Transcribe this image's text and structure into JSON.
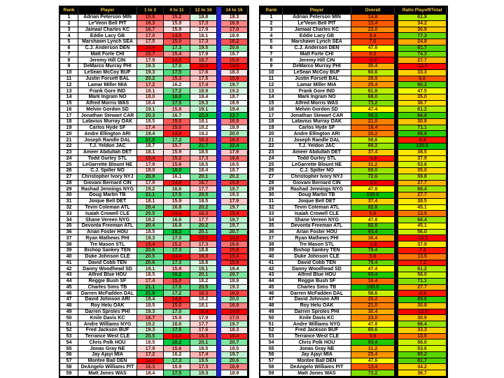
{
  "page": {
    "background": "#FFFFFF"
  },
  "styles": {
    "header_bg": "#000000",
    "header_text": "#FFD24D",
    "value_text": "#4D1000",
    "label_text": "#000000",
    "left_separator_color": "#2222DD",
    "right_separator_color": "#000000"
  },
  "chart_data": [
    {
      "type": "table",
      "name": "weekly-splits-table",
      "columns": [
        "Rank",
        "Player",
        "1 to 3",
        "4 to 11",
        "12 to 16",
        "14 to 16"
      ],
      "color_scale": {
        "low": "#FF0000",
        "mid": "#FFFFFF",
        "high": "#00CC44",
        "mid_mode": "median"
      },
      "separator": {
        "after_column": 4,
        "color": "#2222DD"
      },
      "rows": [
        [
          1,
          "Adrian Peterson MIN",
          15.8,
          15.2,
          18.8,
          18.3
        ],
        [
          2,
          "Le'Veon Bell PIT",
          16.3,
          15.9,
          17.3,
          16.9
        ],
        [
          3,
          "Jamaal Charles KC",
          16.7,
          15.9,
          17.9,
          17.0
        ],
        [
          4,
          "Eddie Lacy GB",
          17.0,
          14.8,
          18.1,
          18.9
        ],
        [
          5,
          "Marshawn Lynch SEA",
          17.5,
          15.0,
          17.3,
          16.2
        ],
        [
          6,
          "C.J. Anderson DEN",
          14.4,
          17.3,
          19.5,
          20.6
        ],
        [
          7,
          "Matt Forte CHI",
          15.7,
          15.4,
          17.9,
          18.7
        ],
        [
          8,
          "Jeremy Hill CIN",
          17.9,
          14.6,
          16.7,
          15.9
        ],
        [
          9,
          "DeMarco Murray PHI",
          19.3,
          17.0,
          15.4,
          14.9
        ],
        [
          10,
          "LeSean McCoy BUF",
          19.3,
          17.5,
          17.6,
          18.3
        ],
        [
          11,
          "Justin Forsett BAL",
          20.2,
          15.3,
          17.5,
          15.9
        ],
        [
          12,
          "Lamar Miller MIA",
          17.2,
          16.2,
          17.4,
          19.7
        ],
        [
          13,
          "Frank Gore IND",
          18.1,
          17.2,
          18.9,
          19.2
        ],
        [
          14,
          "Mark Ingram NO",
          18.0,
          18.0,
          18.4,
          18.7
        ],
        [
          15,
          "Alfred Morris WAS",
          18.4,
          17.5,
          19.3,
          18.9
        ],
        [
          16,
          "Melvin Gordon SD",
          19.1,
          15.8,
          19.1,
          19.4
        ],
        [
          17,
          "Jonathan Stewart CAR",
          20.3,
          16.7,
          22.0,
          22.7
        ],
        [
          18,
          "Latavius Murray OAK",
          18.5,
          15.0,
          18.1,
          16.9
        ],
        [
          19,
          "Carlos Hyde SF",
          17.4,
          15.0,
          18.2,
          18.9
        ],
        [
          20,
          "Andre Ellington ARI",
          19.4,
          14.6,
          18.2,
          20.0
        ],
        [
          21,
          "Joseph Randle DAL",
          21.9,
          17.2,
          16.3,
          16.0
        ],
        [
          22,
          "T.J. Yeldon JAC",
          18.7,
          15.7,
          21.7,
          22.4
        ],
        [
          23,
          "Ameer Abdullah DET",
          18.1,
          15.9,
          18.5,
          17.9
        ],
        [
          24,
          "Todd Gurley STL",
          15.4,
          15.2,
          17.3,
          16.6
        ],
        [
          25,
          "LeGarrette Blount NE",
          17.9,
          15.6,
          18.5,
          18.5
        ],
        [
          26,
          "C.J. Spiller NO",
          18.0,
          18.0,
          18.4,
          18.7
        ],
        [
          27,
          "Christopher Ivory NYJ",
          20.8,
          16.1,
          20.1,
          20.2
        ],
        [
          28,
          "Giovani Bernard CIN",
          17.9,
          14.6,
          16.7,
          15.9
        ],
        [
          29,
          "Rashad Jennings NYG",
          19.2,
          16.6,
          17.7,
          19.7
        ],
        [
          30,
          "Doug Martin TB",
          21.1,
          17.5,
          20.5,
          19.3
        ],
        [
          31,
          "Joique Bell DET",
          18.1,
          15.9,
          18.5,
          17.9
        ],
        [
          32,
          "Tevin Coleman ATL",
          20.4,
          16.8,
          20.2,
          19.7
        ],
        [
          33,
          "Isaiah Crowell CLE",
          20.5,
          14.4,
          16.3,
          15.4
        ],
        [
          34,
          "Shane Vereen NYG",
          19.2,
          16.6,
          17.7,
          19.7
        ],
        [
          35,
          "Devonta Freeman ATL",
          20.4,
          16.8,
          20.2,
          19.7
        ],
        [
          36,
          "Arian Foster HOU",
          18.5,
          18.2,
          20.1,
          20.7
        ],
        [
          37,
          "Ryan Mathews PHI",
          19.3,
          17.0,
          15.4,
          14.9
        ],
        [
          38,
          "Tre Mason STL",
          15.4,
          15.2,
          17.3,
          16.6
        ],
        [
          39,
          "Bishop Sankey TEN",
          20.6,
          17.3,
          18.8,
          15.6
        ],
        [
          40,
          "Duke Johnson CLE",
          20.5,
          14.4,
          16.3,
          15.4
        ],
        [
          41,
          "David Cobb TEN",
          20.6,
          17.3,
          18.8,
          15.6
        ],
        [
          42,
          "Danny Woodhead SD",
          19.1,
          15.8,
          19.1,
          19.4
        ],
        [
          43,
          "Alfred Blue HOU",
          18.5,
          18.2,
          20.1,
          20.7
        ],
        [
          44,
          "Reggie Bush SF",
          17.4,
          15.0,
          18.2,
          18.9
        ],
        [
          45,
          "Charles Sims TB",
          21.1,
          17.5,
          20.5,
          19.3
        ],
        [
          46,
          "Darren McFadden DAL",
          21.9,
          17.2,
          16.3,
          16.0
        ],
        [
          47,
          "David Johnson ARI",
          19.4,
          14.6,
          18.2,
          20.0
        ],
        [
          48,
          "Roy Helu OAK",
          18.5,
          15.0,
          18.1,
          16.9
        ],
        [
          49,
          "Darren Sproles PHI",
          19.3,
          17.0,
          15.4,
          14.9
        ],
        [
          50,
          "Knile Davis KC",
          16.7,
          15.9,
          17.9,
          17.0
        ],
        [
          51,
          "Andre Williams NYG",
          19.2,
          16.6,
          17.7,
          19.7
        ],
        [
          52,
          "Fred Jackson BUF",
          19.3,
          17.5,
          17.6,
          18.3
        ],
        [
          53,
          "Terrance West CLE",
          20.5,
          14.4,
          16.3,
          15.4
        ],
        [
          54,
          "Chris Polk HOU",
          18.5,
          18.2,
          20.1,
          20.7
        ],
        [
          55,
          "Jonas Gray NE",
          17.9,
          15.6,
          18.5,
          18.5
        ],
        [
          56,
          "Jay Ajayi MIA",
          17.2,
          16.2,
          17.4,
          19.7
        ],
        [
          57,
          "Montee Ball DEN",
          14.4,
          17.3,
          19.5,
          20.6
        ],
        [
          58,
          "DeAngelo Williams PIT",
          16.3,
          15.9,
          17.3,
          16.9
        ],
        [
          59,
          "Matt Jones WAS",
          18.4,
          17.5,
          19.3,
          18.9
        ]
      ]
    },
    {
      "type": "table",
      "name": "overall-ratio-table",
      "columns": [
        "Rank",
        "Player",
        "Overall",
        "Ratio Playoff/Total"
      ],
      "color_scale": {
        "low": "#FF0000",
        "mid": "#FFFF00",
        "high": "#00C000",
        "mid_mode": "range"
      },
      "separator": {
        "after_column": 2,
        "color": "#000000"
      },
      "rows": [
        [
          1,
          "Adrian Peterson MIN",
          14.8,
          61.9
        ],
        [
          2,
          "Le'Veon Bell PIT",
          13.4,
          34.2
        ],
        [
          3,
          "Jamaal Charles KC",
          23.0,
          30.9
        ],
        [
          4,
          "Eddie Lacy GB",
          9.4,
          77.3
        ],
        [
          5,
          "Marshawn Lynch SEA",
          7.6,
          24.8
        ],
        [
          6,
          "C.J. Anderson DEN",
          47.6,
          81.7
        ],
        [
          7,
          "Matt Forte CHI",
          8.2,
          74.3
        ],
        [
          8,
          "Jeremy Hill CIN",
          -5.6,
          27.7
        ],
        [
          9,
          "DeMarco Murray PHI",
          30.4,
          -12.5
        ],
        [
          10,
          "LeSean McCoy BUF",
          60.6,
          33.3
        ],
        [
          11,
          "Justin Forsett BAL",
          28.8,
          6.6
        ],
        [
          12,
          "Lamar Miller MIA",
          25.4,
          80.2
        ],
        [
          13,
          "Frank Gore IND",
          61.8,
          47.5
        ],
        [
          14,
          "Mark Ingram NO",
          69.0,
          35.0
        ],
        [
          15,
          "Alfred Morris WAS",
          73.2,
          36.7
        ],
        [
          16,
          "Melvin Gordon SD",
          47.4,
          61.2
        ],
        [
          17,
          "Jonathan Stewart CAR",
          98.2,
          86.8
        ],
        [
          18,
          "Latavius Murray OAK",
          21.0,
          30.8
        ],
        [
          19,
          "Carlos Hyde SF",
          16.4,
          71.1
        ],
        [
          20,
          "Andre Ellington ARI",
          20.2,
          89.6
        ],
        [
          21,
          "Joseph Randle DAL",
          58.6,
          -6.8
        ],
        [
          22,
          "T.J. Yeldon JAC",
          69.2,
          100.0
        ],
        [
          23,
          "Ameer Abdullah DET",
          37.4,
          38.5
        ],
        [
          24,
          "Todd Gurley STL",
          -1.8,
          37.9
        ],
        [
          25,
          "LeGarrette Blount NE",
          31.2,
          53.6
        ],
        [
          26,
          "C.J. Spiller NO",
          69.0,
          35.0
        ],
        [
          27,
          "Christopher Ivory NYJ",
          72.6,
          59.8
        ],
        [
          28,
          "Giovani Bernard CIN",
          -5.6,
          27.7
        ],
        [
          29,
          "Rashad Jennings NYG",
          47.8,
          66.4
        ],
        [
          30,
          "Doug Martin TB",
          100.0,
          27.7
        ],
        [
          31,
          "Joique Bell DET",
          37.4,
          38.5
        ],
        [
          32,
          "Tevin Coleman ATL",
          82.8,
          45.1
        ],
        [
          33,
          "Isaiah Crowell CLE",
          5.6,
          13.5
        ],
        [
          34,
          "Shane Vereen NYG",
          47.8,
          66.4
        ],
        [
          35,
          "Devonta Freeman ATL",
          82.8,
          45.1
        ],
        [
          36,
          "Arian Foster HOU",
          93.4,
          56.0
        ],
        [
          37,
          "Ryan Mathews PHI",
          30.4,
          -12.5
        ],
        [
          38,
          "Tre Mason STL",
          -1.8,
          37.9
        ],
        [
          39,
          "Bishop Sankey TEN",
          78.4,
          -7.2
        ],
        [
          40,
          "Duke Johnson CLE",
          5.6,
          13.5
        ],
        [
          41,
          "David Cobb TEN",
          78.4,
          -7.2
        ],
        [
          42,
          "Danny Woodhead SD",
          47.4,
          61.2
        ],
        [
          43,
          "Alfred Blue HOU",
          93.4,
          56.0
        ],
        [
          44,
          "Reggie Bush SF",
          16.4,
          71.1
        ],
        [
          45,
          "Charles Sims TB",
          100.0,
          27.7
        ],
        [
          46,
          "Darren McFadden DAL",
          58.6,
          -6.8
        ],
        [
          47,
          "David Johnson ARI",
          20.2,
          89.6
        ],
        [
          48,
          "Roy Helu OAK",
          21.0,
          30.8
        ],
        [
          49,
          "Darren Sproles PHI",
          30.4,
          -12.5
        ],
        [
          50,
          "Knile Davis KC",
          23.0,
          30.9
        ],
        [
          51,
          "Andre Williams NYG",
          47.8,
          66.4
        ],
        [
          52,
          "Fred Jackson BUF",
          60.6,
          33.3
        ],
        [
          53,
          "Terrance West CLE",
          5.6,
          13.5
        ],
        [
          54,
          "Chris Polk HOU",
          93.4,
          56.0
        ],
        [
          55,
          "Jonas Gray NE",
          31.2,
          53.6
        ],
        [
          56,
          "Jay Ajayi MIA",
          25.4,
          80.2
        ],
        [
          57,
          "Montee Ball DEN",
          47.6,
          81.7
        ],
        [
          58,
          "DeAngelo Williams PIT",
          13.4,
          34.2
        ],
        [
          59,
          "Matt Jones WAS",
          73.2,
          36.7
        ]
      ]
    }
  ]
}
